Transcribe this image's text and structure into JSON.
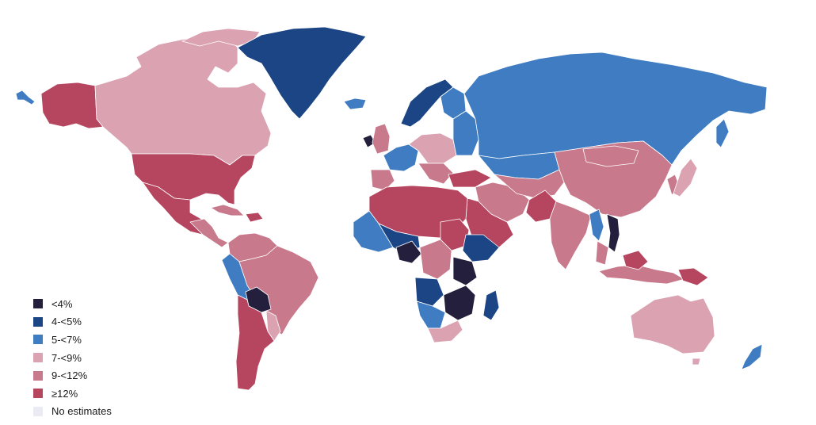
{
  "title": "",
  "colors": {
    "lt4": "#231f3c",
    "4to5": "#1b4585",
    "5to7": "#3f7cc1",
    "7to9": "#dba2b2",
    "9to12": "#c9798c",
    "ge12": "#b6455f",
    "none": "#ebebf3"
  },
  "legend": {
    "items": [
      {
        "label": "<4%",
        "color": "#231f3c"
      },
      {
        "label": "4-<5%",
        "color": "#1b4585"
      },
      {
        "label": "5-<7%",
        "color": "#3f7cc1"
      },
      {
        "label": "7-<9%",
        "color": "#dba2b2"
      },
      {
        "label": "9-<12%",
        "color": "#c9798c"
      },
      {
        "label": "≥12%",
        "color": "#b6455f"
      },
      {
        "label": "No estimates",
        "color": "#ebebf3"
      }
    ]
  }
}
